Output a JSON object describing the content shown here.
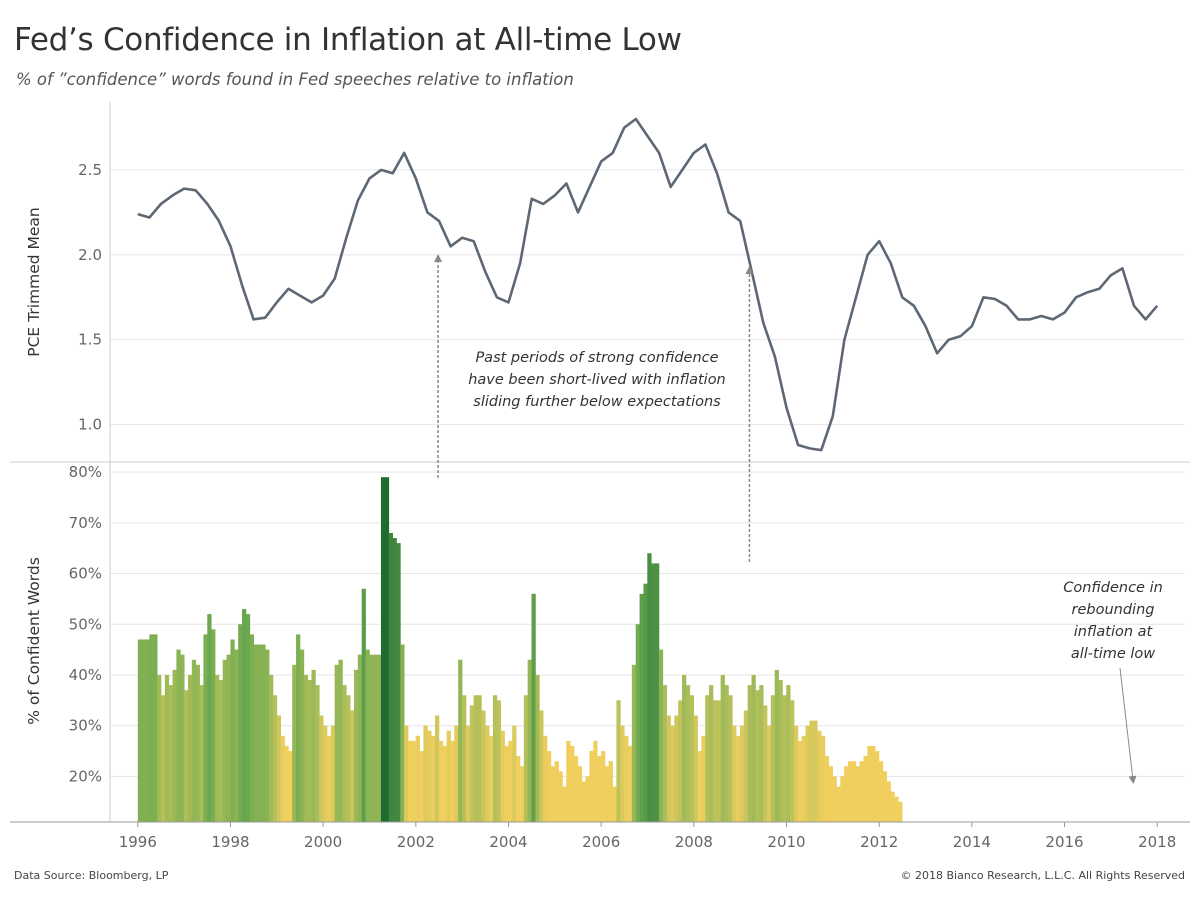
{
  "header": {
    "title": "Fed’s Confidence in Inflation at All-time Low",
    "subtitle": "% of ”confidence” words found in Fed speeches relative to inflation"
  },
  "footer": {
    "source": "Data Source: Bloomberg, LP",
    "copyright": "© 2018 Bianco Research, L.L.C. All Rights Reserved"
  },
  "colors": {
    "line": "#5e6875",
    "bar_low": "#f1cf5e",
    "bar_mid": "#a9bd5a",
    "bar_high": "#6aa84f",
    "bar_peak": "#1e6b30",
    "arrow": "#888888",
    "grid": "#e6e6e6"
  },
  "chart_data": [
    {
      "type": "line",
      "name": "pce-trimmed-mean",
      "ylabel": "PCE Trimmed Mean",
      "yticks": [
        "1.0",
        "1.5",
        "2.0",
        "2.5"
      ],
      "ytick_values": [
        1.0,
        1.5,
        2.0,
        2.5
      ],
      "ylim": [
        0.78,
        2.9
      ],
      "grid": "horizontal",
      "x": [
        1996.0,
        1996.25,
        1996.5,
        1996.75,
        1997.0,
        1997.25,
        1997.5,
        1997.75,
        1998.0,
        1998.25,
        1998.5,
        1998.75,
        1999.0,
        1999.25,
        1999.5,
        1999.75,
        2000.0,
        2000.25,
        2000.5,
        2000.75,
        2001.0,
        2001.25,
        2001.5,
        2001.75,
        2002.0,
        2002.25,
        2002.5,
        2002.75,
        2003.0,
        2003.25,
        2003.5,
        2003.75,
        2004.0,
        2004.25,
        2004.5,
        2004.75,
        2005.0,
        2005.25,
        2005.5,
        2005.75,
        2006.0,
        2006.25,
        2006.5,
        2006.75,
        2007.0,
        2007.25,
        2007.5,
        2007.75,
        2008.0,
        2008.25,
        2008.5,
        2008.75,
        2009.0,
        2009.25,
        2009.5,
        2009.75,
        2010.0,
        2010.25,
        2010.5,
        2010.75,
        2011.0,
        2011.25,
        2011.5,
        2011.75,
        2012.0,
        2012.25,
        2012.5,
        2012.75,
        2013.0,
        2013.25,
        2013.5,
        2013.75,
        2014.0,
        2014.25,
        2014.5,
        2014.75,
        2015.0,
        2015.25,
        2015.5,
        2015.75,
        2016.0,
        2016.25,
        2016.5,
        2016.75,
        2017.0,
        2017.25,
        2017.5,
        2017.75,
        2018.0
      ],
      "values": [
        2.24,
        2.22,
        2.3,
        2.35,
        2.39,
        2.38,
        2.3,
        2.2,
        2.05,
        1.82,
        1.62,
        1.63,
        1.72,
        1.8,
        1.76,
        1.72,
        1.76,
        1.86,
        2.1,
        2.32,
        2.45,
        2.5,
        2.48,
        2.6,
        2.45,
        2.25,
        2.2,
        2.05,
        2.1,
        2.08,
        1.9,
        1.75,
        1.72,
        1.95,
        2.33,
        2.3,
        2.35,
        2.42,
        2.25,
        2.4,
        2.55,
        2.6,
        2.75,
        2.8,
        2.7,
        2.6,
        2.4,
        2.5,
        2.6,
        2.65,
        2.48,
        2.25,
        2.2,
        1.9,
        1.6,
        1.4,
        1.1,
        0.88,
        0.86,
        0.85,
        1.05,
        1.5,
        1.75,
        2.0,
        2.08,
        1.95,
        1.75,
        1.7,
        1.58,
        1.42,
        1.5,
        1.52,
        1.58,
        1.75,
        1.74,
        1.7,
        1.62,
        1.62,
        1.64,
        1.62,
        1.66,
        1.75,
        1.78,
        1.8,
        1.88,
        1.92,
        1.7,
        1.62,
        1.7
      ]
    },
    {
      "type": "bar",
      "name": "confident-words",
      "ylabel": "% of Confident Words",
      "yticks": [
        "20%",
        "30%",
        "40%",
        "50%",
        "60%",
        "70%",
        "80%"
      ],
      "ytick_values": [
        20,
        30,
        40,
        50,
        60,
        70,
        80
      ],
      "ylim": [
        11,
        82
      ],
      "xticks": [
        "1996",
        "1998",
        "2000",
        "2002",
        "2004",
        "2006",
        "2008",
        "2010",
        "2012",
        "2014",
        "2016",
        "2018"
      ],
      "xtick_values": [
        1996,
        1998,
        2000,
        2002,
        2004,
        2006,
        2008,
        2010,
        2012,
        2014,
        2016,
        2018
      ],
      "xlim": [
        1995.4,
        2018.6
      ],
      "bar_start": 1996.0,
      "bar_step": 0.0833,
      "values": [
        47,
        47,
        47,
        48,
        48,
        40,
        36,
        40,
        38,
        41,
        45,
        44,
        37,
        40,
        43,
        42,
        38,
        48,
        52,
        49,
        40,
        39,
        43,
        44,
        47,
        45,
        50,
        53,
        52,
        48,
        46,
        46,
        46,
        45,
        40,
        36,
        32,
        28,
        26,
        25,
        42,
        48,
        45,
        40,
        39,
        41,
        38,
        32,
        30,
        28,
        30,
        42,
        43,
        38,
        36,
        33,
        41,
        44,
        57,
        45,
        44,
        44,
        44,
        79,
        79,
        68,
        67,
        66,
        46,
        30,
        27,
        27,
        28,
        25,
        30,
        29,
        28,
        32,
        27,
        26,
        29,
        27,
        30,
        43,
        36,
        30,
        34,
        36,
        36,
        33,
        30,
        28,
        36,
        35,
        29,
        26,
        27,
        30,
        24,
        22,
        36,
        43,
        56,
        40,
        33,
        28,
        25,
        22,
        23,
        21,
        18,
        27,
        26,
        24,
        22,
        19,
        20,
        25,
        27,
        24,
        25,
        22,
        23,
        18,
        35,
        30,
        28,
        26,
        42,
        50,
        56,
        58,
        64,
        62,
        62,
        45,
        38,
        32,
        30,
        32,
        35,
        40,
        38,
        36,
        32,
        25,
        28,
        36,
        38,
        35,
        35,
        40,
        38,
        36,
        30,
        28,
        30,
        33,
        38,
        40,
        37,
        38,
        34,
        30,
        36,
        41,
        39,
        36,
        38,
        35,
        30,
        27,
        28,
        30,
        31,
        31,
        29,
        28,
        24,
        22,
        20,
        18,
        20,
        22,
        23,
        23,
        22,
        23,
        24,
        26,
        26,
        25,
        23,
        21,
        19,
        17,
        16,
        15
      ]
    }
  ],
  "annotations": {
    "center_text": [
      "Past periods of strong confidence",
      "have been short-lived with inflation",
      "sliding further below expectations"
    ],
    "right_text": [
      "Confidence in",
      "rebounding",
      "inflation at",
      "all-time low"
    ]
  }
}
